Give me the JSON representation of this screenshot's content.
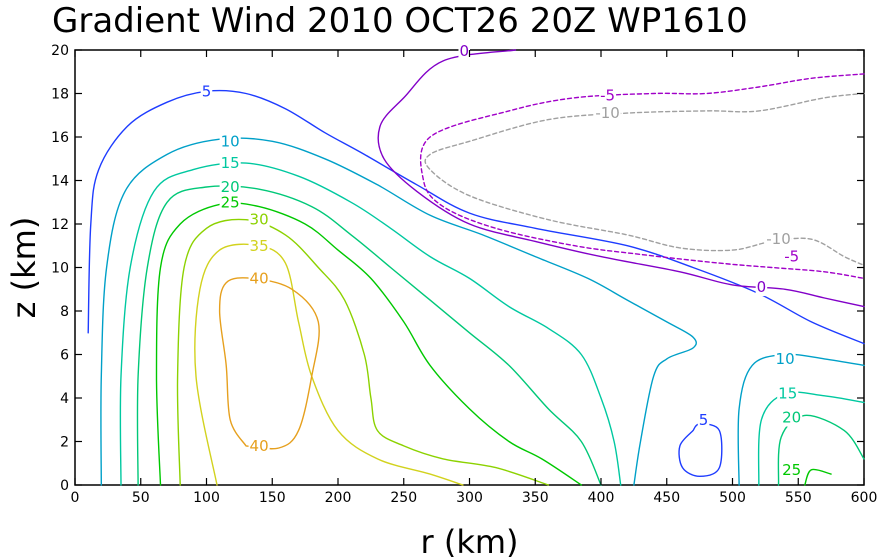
{
  "chart_data": {
    "type": "contour",
    "title": "Gradient Wind 2010 OCT26 20Z  WP1610",
    "xlabel": "r (km)",
    "ylabel": "z (km)",
    "xlim": [
      0,
      600
    ],
    "ylim": [
      0,
      20
    ],
    "xticks": [
      0,
      50,
      100,
      150,
      200,
      250,
      300,
      350,
      400,
      450,
      500,
      550,
      600
    ],
    "yticks": [
      0,
      2,
      4,
      6,
      8,
      10,
      12,
      14,
      16,
      18,
      20
    ],
    "grid": false,
    "contours": [
      {
        "level": "5",
        "color": "#1e3cff",
        "dashed": false,
        "points": [
          [
            10,
            7
          ],
          [
            12,
            12
          ],
          [
            18,
            14.5
          ],
          [
            40,
            16.5
          ],
          [
            70,
            17.6
          ],
          [
            100,
            18.1
          ],
          [
            130,
            18
          ],
          [
            160,
            17.3
          ],
          [
            190,
            16.2
          ],
          [
            220,
            15.2
          ],
          [
            260,
            13.8
          ],
          [
            300,
            12.5
          ],
          [
            350,
            11.8
          ],
          [
            420,
            11
          ],
          [
            470,
            10
          ],
          [
            520,
            8.8
          ],
          [
            560,
            7.5
          ],
          [
            600,
            6.5
          ]
        ],
        "label": [
          100,
          18
        ]
      },
      {
        "level": "10",
        "color": "#00a0c8",
        "dashed": false,
        "points": [
          [
            20,
            0
          ],
          [
            20,
            5
          ],
          [
            24,
            10
          ],
          [
            38,
            13.5
          ],
          [
            70,
            15.2
          ],
          [
            110,
            15.9
          ],
          [
            150,
            15.8
          ],
          [
            190,
            15
          ],
          [
            230,
            13.8
          ],
          [
            270,
            12.4
          ],
          [
            310,
            11.5
          ],
          [
            350,
            10.5
          ],
          [
            390,
            9.5
          ],
          [
            420,
            8.5
          ],
          [
            450,
            7.5
          ],
          [
            470,
            6.8
          ],
          [
            470,
            6.3
          ],
          [
            450,
            5.8
          ],
          [
            440,
            5
          ],
          [
            430,
            2
          ],
          [
            425,
            0
          ]
        ],
        "label": [
          120,
          15.8
        ]
      },
      {
        "level": "10",
        "color": "#00a0c8",
        "dashed": false,
        "points": [
          [
            505,
            0
          ],
          [
            505,
            3.5
          ],
          [
            515,
            5.5
          ],
          [
            540,
            6
          ],
          [
            570,
            5.8
          ],
          [
            600,
            5.5
          ]
        ],
        "label": [
          540,
          5.8
        ]
      },
      {
        "level": "15",
        "color": "#00c8a0",
        "dashed": false,
        "points": [
          [
            35,
            0
          ],
          [
            35,
            5
          ],
          [
            42,
            10
          ],
          [
            60,
            13.5
          ],
          [
            90,
            14.5
          ],
          [
            130,
            14.8
          ],
          [
            170,
            14.2
          ],
          [
            210,
            13
          ],
          [
            240,
            11.8
          ],
          [
            270,
            10.5
          ],
          [
            300,
            9.5
          ],
          [
            330,
            8.2
          ],
          [
            360,
            7.2
          ],
          [
            385,
            6
          ],
          [
            400,
            4
          ],
          [
            410,
            2
          ],
          [
            415,
            0
          ]
        ],
        "label": [
          110,
          14.8
        ]
      },
      {
        "level": "15",
        "color": "#00c8a0",
        "dashed": false,
        "points": [
          [
            520,
            0
          ],
          [
            522,
            3
          ],
          [
            540,
            4.2
          ],
          [
            570,
            4.1
          ],
          [
            600,
            3.8
          ]
        ],
        "label": [
          545,
          4.2
        ]
      },
      {
        "level": "20",
        "color": "#00c878",
        "dashed": false,
        "points": [
          [
            48,
            0
          ],
          [
            48,
            5
          ],
          [
            55,
            10
          ],
          [
            70,
            13
          ],
          [
            100,
            13.7
          ],
          [
            140,
            13.6
          ],
          [
            180,
            12.8
          ],
          [
            210,
            11.5
          ],
          [
            240,
            10
          ],
          [
            270,
            8.5
          ],
          [
            300,
            7
          ],
          [
            330,
            5.5
          ],
          [
            360,
            3.5
          ],
          [
            385,
            2
          ],
          [
            400,
            0
          ]
        ],
        "label": [
          120,
          13.8
        ]
      },
      {
        "level": "20",
        "color": "#00c878",
        "dashed": false,
        "points": [
          [
            535,
            0
          ],
          [
            537,
            2.2
          ],
          [
            555,
            3.2
          ],
          [
            585,
            2.5
          ],
          [
            600,
            1.2
          ]
        ],
        "label": [
          550,
          3
        ]
      },
      {
        "level": "25",
        "color": "#00c800",
        "dashed": false,
        "points": [
          [
            65,
            0
          ],
          [
            62,
            5
          ],
          [
            65,
            10
          ],
          [
            80,
            12
          ],
          [
            110,
            12.9
          ],
          [
            140,
            12.8
          ],
          [
            175,
            12
          ],
          [
            200,
            10.8
          ],
          [
            225,
            9.5
          ],
          [
            250,
            7.5
          ],
          [
            270,
            5.5
          ],
          [
            300,
            3.5
          ],
          [
            330,
            2
          ],
          [
            355,
            1.2
          ],
          [
            385,
            0
          ]
        ],
        "label": [
          118,
          13
        ]
      },
      {
        "level": "25",
        "color": "#00c800",
        "dashed": false,
        "points": [
          [
            555,
            0
          ],
          [
            560,
            0.7
          ],
          [
            575,
            0.5
          ]
        ],
        "label": [
          545,
          0.6
        ]
      },
      {
        "level": "30",
        "color": "#8cd200",
        "dashed": false,
        "points": [
          [
            80,
            0
          ],
          [
            78,
            5
          ],
          [
            83,
            10
          ],
          [
            100,
            11.8
          ],
          [
            130,
            12.2
          ],
          [
            160,
            11.5
          ],
          [
            185,
            10
          ],
          [
            205,
            8.5
          ],
          [
            220,
            6
          ],
          [
            225,
            4
          ],
          [
            230,
            2.5
          ],
          [
            250,
            1.8
          ],
          [
            280,
            1.2
          ],
          [
            320,
            0.8
          ],
          [
            360,
            0
          ]
        ],
        "label": [
          140,
          12.2
        ]
      },
      {
        "level": "35",
        "color": "#d2d21e",
        "dashed": false,
        "points": [
          [
            108,
            0
          ],
          [
            92,
            5
          ],
          [
            95,
            9
          ],
          [
            110,
            10.8
          ],
          [
            140,
            11
          ],
          [
            160,
            10.2
          ],
          [
            170,
            7.5
          ],
          [
            180,
            5
          ],
          [
            200,
            2.5
          ],
          [
            230,
            1.2
          ],
          [
            270,
            0.5
          ],
          [
            295,
            0
          ]
        ],
        "label": [
          140,
          11
        ]
      },
      {
        "level": "40",
        "color": "#e6a01e",
        "dashed": false,
        "points": [
          [
            130,
            1.8
          ],
          [
            118,
            3
          ],
          [
            115,
            5.5
          ],
          [
            110,
            8
          ],
          [
            115,
            9.3
          ],
          [
            135,
            9.5
          ],
          [
            165,
            9
          ],
          [
            185,
            7.5
          ],
          [
            180,
            5
          ],
          [
            170,
            2.5
          ],
          [
            155,
            1.7
          ],
          [
            130,
            1.8
          ]
        ],
        "label_pts": [
          [
            140,
            10
          ],
          [
            140,
            1.8
          ]
        ]
      },
      {
        "level": "5",
        "color": "#1e3cff",
        "dashed": false,
        "points": [
          [
            470,
            2.5
          ],
          [
            460,
            1.8
          ],
          [
            462,
            0.8
          ],
          [
            475,
            0.4
          ],
          [
            490,
            0.8
          ],
          [
            490,
            2.5
          ],
          [
            475,
            2.8
          ],
          [
            470,
            2.5
          ]
        ],
        "label": [
          480,
          2.8
        ]
      },
      {
        "level": "0",
        "color": "#8200c8",
        "dashed": false,
        "points": [
          [
            335,
            20
          ],
          [
            280,
            19.5
          ],
          [
            250,
            17.8
          ],
          [
            232,
            16.5
          ],
          [
            235,
            15
          ],
          [
            260,
            13.5
          ],
          [
            300,
            12
          ],
          [
            350,
            11.2
          ],
          [
            400,
            10.5
          ],
          [
            460,
            9.8
          ],
          [
            500,
            9.2
          ],
          [
            540,
            9
          ],
          [
            570,
            8.6
          ],
          [
            600,
            8.2
          ]
        ],
        "label": [
          525,
          8.8
        ]
      },
      {
        "level": "-5",
        "color": "#a000c8",
        "dashed": true,
        "points": [
          [
            600,
            18.9
          ],
          [
            560,
            18.7
          ],
          [
            520,
            18.3
          ],
          [
            480,
            18
          ],
          [
            440,
            18
          ],
          [
            380,
            17.8
          ],
          [
            330,
            17.2
          ],
          [
            270,
            16
          ],
          [
            265,
            14
          ],
          [
            280,
            12.8
          ],
          [
            320,
            11.8
          ],
          [
            380,
            11
          ],
          [
            430,
            10.6
          ],
          [
            490,
            10.2
          ],
          [
            530,
            10
          ],
          [
            570,
            9.8
          ],
          [
            600,
            9.5
          ]
        ],
        "label_pts": [
          [
            405,
            18
          ],
          [
            555,
            10.5
          ]
        ]
      },
      {
        "level": "-10",
        "color": "#a0a0a0",
        "dashed": true,
        "points": [
          [
            600,
            18
          ],
          [
            570,
            17.8
          ],
          [
            520,
            17.2
          ],
          [
            480,
            17.2
          ],
          [
            420,
            17.1
          ],
          [
            360,
            16.8
          ],
          [
            300,
            15.8
          ],
          [
            270,
            15.2
          ],
          [
            270,
            14.5
          ],
          [
            300,
            13.3
          ],
          [
            360,
            12.2
          ],
          [
            420,
            11.5
          ],
          [
            460,
            10.9
          ],
          [
            500,
            10.8
          ],
          [
            530,
            11.2
          ],
          [
            560,
            11.3
          ],
          [
            585,
            10.5
          ],
          [
            600,
            10.1
          ]
        ],
        "label_pts": [
          [
            405,
            17.1
          ],
          [
            535,
            11.3
          ]
        ]
      }
    ],
    "labels": [
      {
        "text": "0",
        "x": 296,
        "y": 19.95,
        "color": "#8200c8"
      },
      {
        "text": "5",
        "x": 100,
        "y": 18.1,
        "color": "#1e3cff"
      },
      {
        "text": "-5",
        "x": 405,
        "y": 17.9,
        "color": "#a000c8"
      },
      {
        "text": "-10",
        "x": 405,
        "y": 17.1,
        "color": "#a0a0a0"
      },
      {
        "text": "10",
        "x": 118,
        "y": 15.8,
        "color": "#00a0c8"
      },
      {
        "text": "15",
        "x": 118,
        "y": 14.8,
        "color": "#00c8a0"
      },
      {
        "text": "20",
        "x": 118,
        "y": 13.7,
        "color": "#00c878"
      },
      {
        "text": "25",
        "x": 118,
        "y": 13,
        "color": "#00c800"
      },
      {
        "text": "30",
        "x": 140,
        "y": 12.2,
        "color": "#8cd200"
      },
      {
        "text": "35",
        "x": 140,
        "y": 11,
        "color": "#d2d21e"
      },
      {
        "text": "40",
        "x": 140,
        "y": 9.5,
        "color": "#e6a01e"
      },
      {
        "text": "40",
        "x": 140,
        "y": 1.8,
        "color": "#e6a01e"
      },
      {
        "text": "-10",
        "x": 535,
        "y": 11.3,
        "color": "#a0a0a0"
      },
      {
        "text": "-5",
        "x": 545,
        "y": 10.5,
        "color": "#a000c8"
      },
      {
        "text": "0",
        "x": 522,
        "y": 9.1,
        "color": "#8200c8"
      },
      {
        "text": "10",
        "x": 540,
        "y": 5.8,
        "color": "#00a0c8"
      },
      {
        "text": "15",
        "x": 542,
        "y": 4.2,
        "color": "#00c8a0"
      },
      {
        "text": "20",
        "x": 545,
        "y": 3.1,
        "color": "#00c878"
      },
      {
        "text": "25",
        "x": 545,
        "y": 0.7,
        "color": "#00c800"
      },
      {
        "text": "5",
        "x": 478,
        "y": 3.0,
        "color": "#1e3cff"
      }
    ]
  }
}
